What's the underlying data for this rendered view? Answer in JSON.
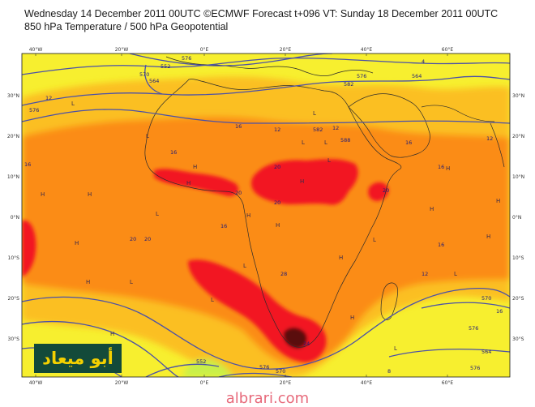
{
  "header": {
    "line1": "Wednesday 14 December 2011 00UTC ©ECMWF Forecast t+096 VT: Sunday 18 December 2011 00UTC",
    "line2": "850 hPa Temperature / 500 hPa Geopotential"
  },
  "axes": {
    "lon_top": [
      "40°W",
      "20°W",
      "0°E",
      "20°E",
      "40°E",
      "60°E"
    ],
    "lon_bottom": [
      "40°W",
      "20°W",
      "0°E",
      "20°E",
      "40°E",
      "60°E"
    ],
    "lat_left": [
      "30°N",
      "20°N",
      "10°N",
      "0°N",
      "10°S",
      "20°S",
      "30°S"
    ],
    "lat_right": [
      "30°N",
      "20°N",
      "10°N",
      "0°N",
      "10°S",
      "20°S",
      "30°S"
    ]
  },
  "colors": {
    "yellow": "#f7ef2f",
    "gold": "#fbbf24",
    "orange": "#fb8c14",
    "red": "#f21620",
    "dark_red": "#5a0f10",
    "light_green": "#c8f04a",
    "contour": "#4a50a8",
    "coast": "#2b2b2b"
  },
  "temperature_labels": [
    "12",
    "16",
    "12",
    "16",
    "12",
    "20",
    "20",
    "20",
    "16",
    "16",
    "20",
    "20",
    "16",
    "28",
    "24",
    "16",
    "12",
    "8",
    "20",
    "12",
    "16",
    "16",
    "4"
  ],
  "geopotential_labels": [
    "552",
    "576",
    "570",
    "582",
    "576",
    "564",
    "582",
    "564",
    "570",
    "576",
    "576",
    "552",
    "564",
    "570",
    "588",
    "576",
    "576"
  ],
  "pressure_centres": [
    "L",
    "L",
    "L",
    "H",
    "H",
    "L",
    "L",
    "H",
    "H",
    "H",
    "L",
    "L",
    "L",
    "H",
    "H",
    "H",
    "H",
    "L",
    "H",
    "H",
    "H",
    "H",
    "L",
    "L",
    "H",
    "L",
    "H",
    "L",
    "H"
  ],
  "watermark": "أبو ميعاد",
  "site": "albrari.com"
}
